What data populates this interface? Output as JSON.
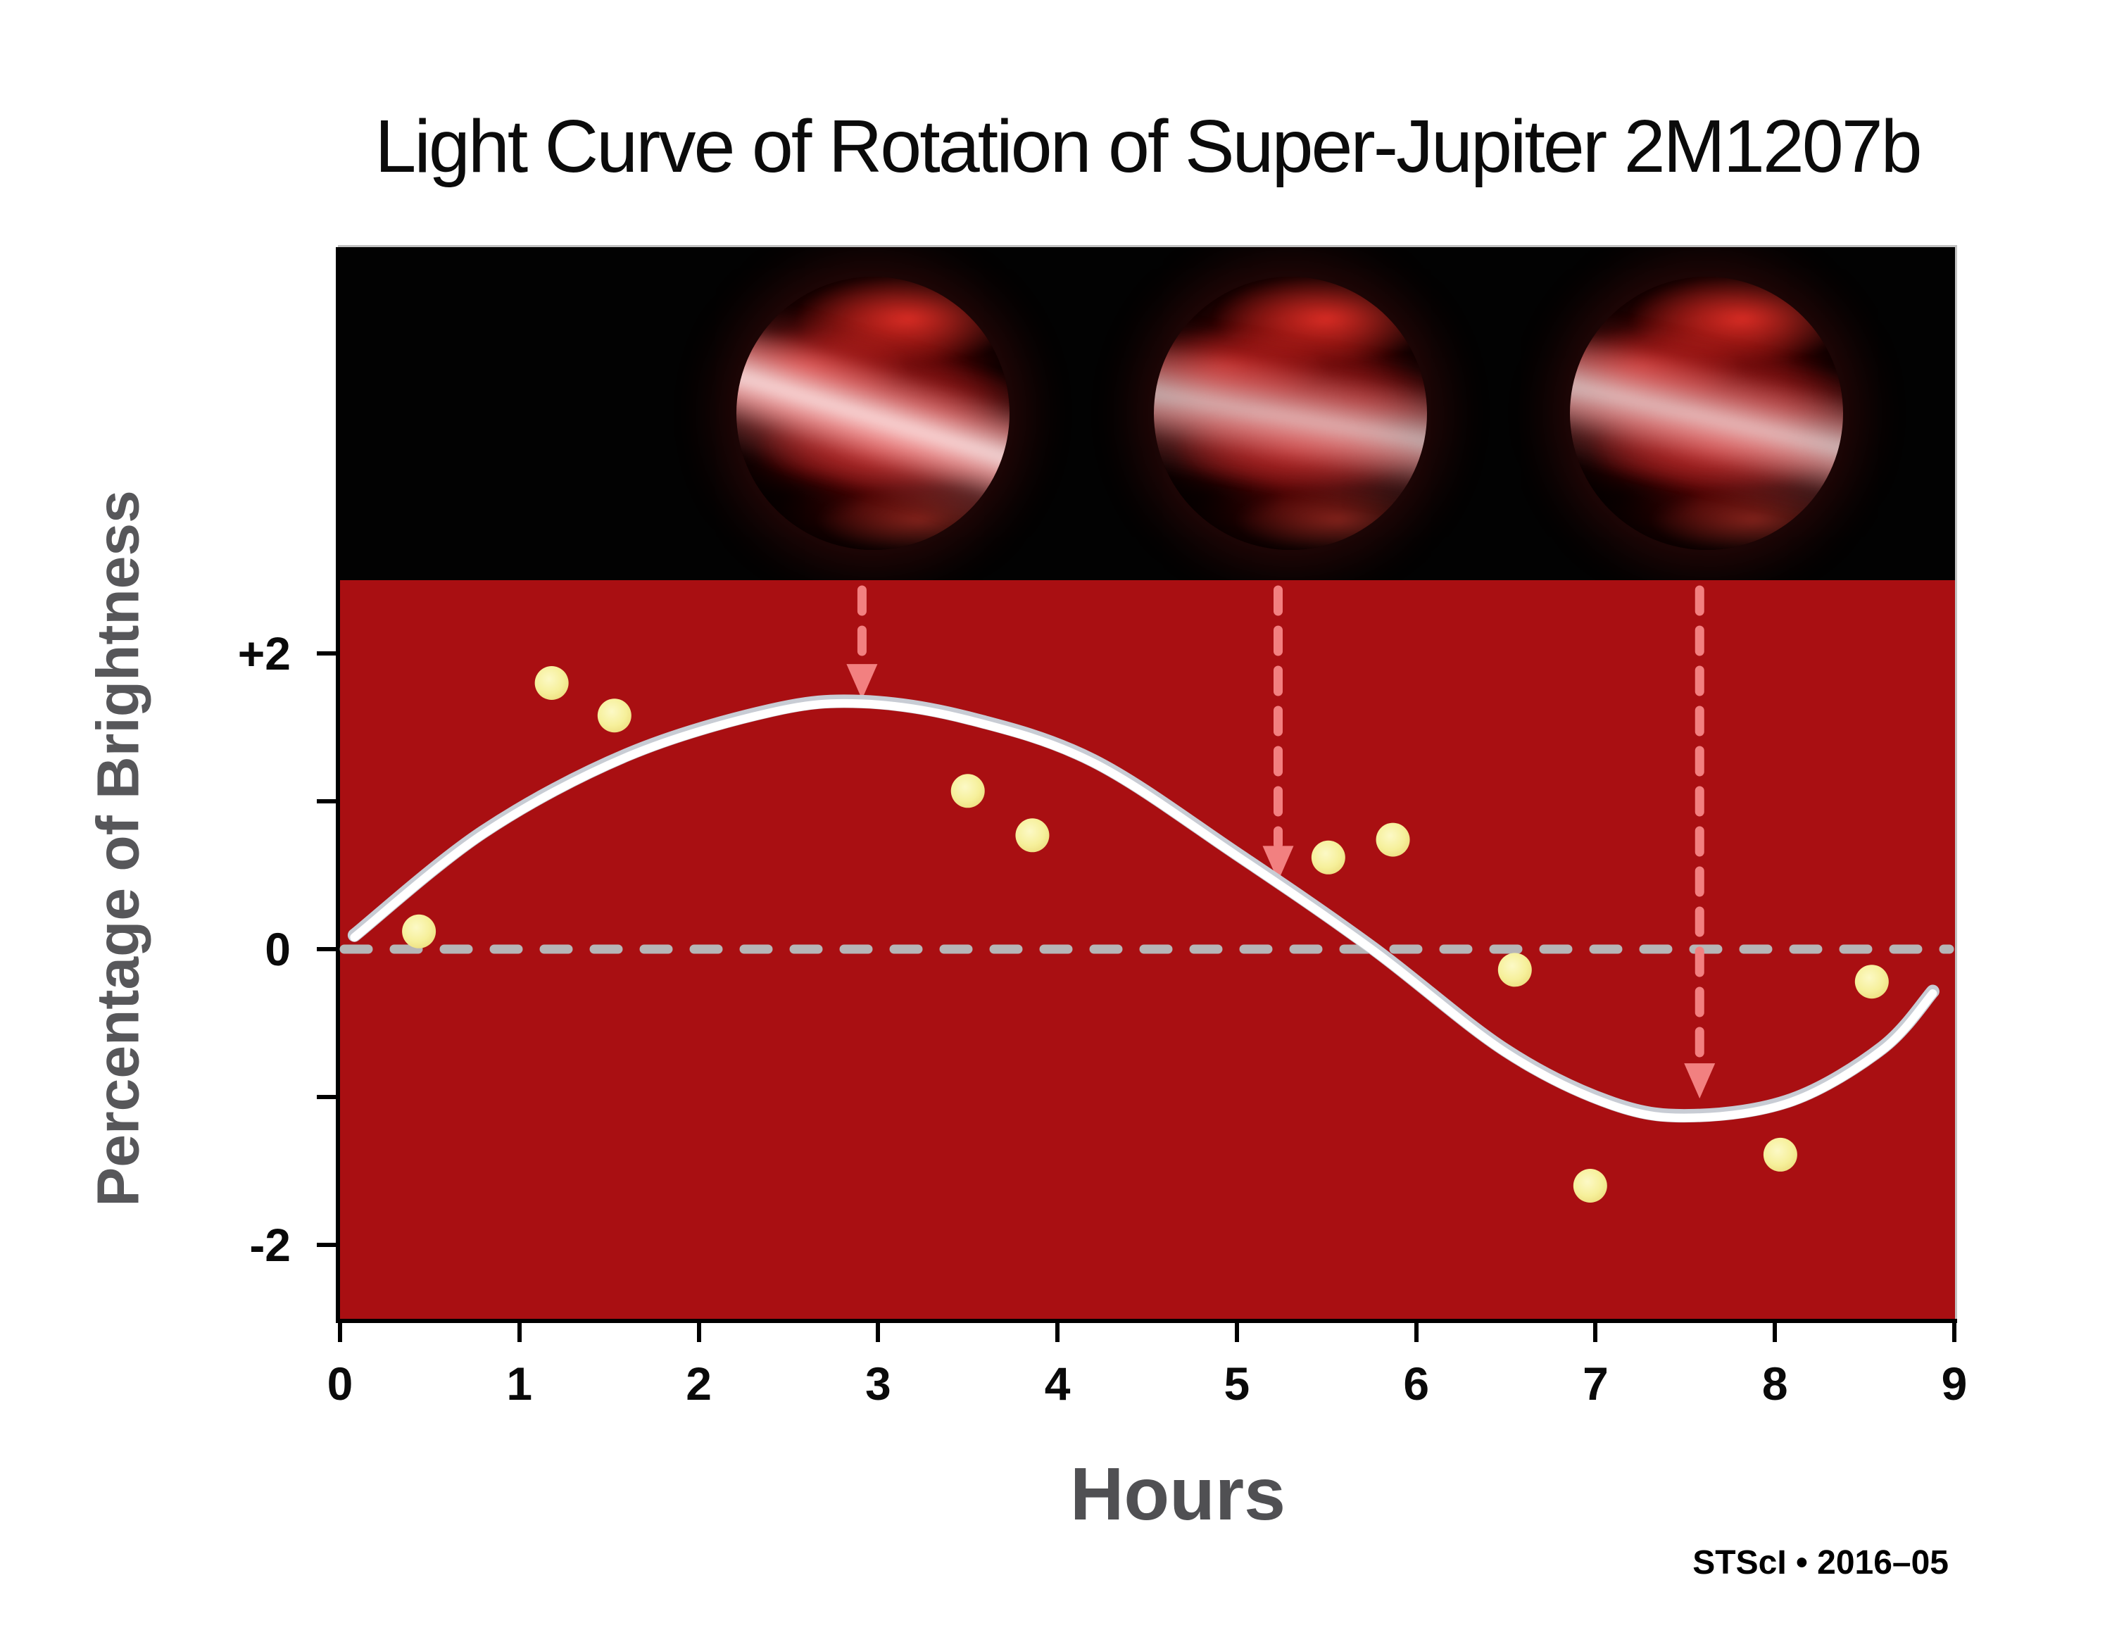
{
  "title": "Light Curve of Rotation of Super-Jupiter 2M1207b",
  "y_axis_title": "Percentage of Brightness",
  "x_axis_title": "Hours",
  "credit": "STScI • 2016–05",
  "colors": {
    "plot_background": "#a90f12",
    "planet_strip_background": "#020202",
    "curve_white": "#ffffff",
    "curve_gray_edge": "#c8ccd4",
    "data_point_yellow": "#f6f09b",
    "data_point_yellow_light": "#fcf9c6",
    "zero_line_gray": "#b6b6b7",
    "arrow_pink": "#f28080",
    "axis_black": "#000000",
    "label_gray": "#57575a"
  },
  "chart_data": {
    "type": "line+scatter",
    "title": "Light Curve of Rotation of Super-Jupiter 2M1207b",
    "xlabel": "Hours",
    "ylabel": "Percentage of Brightness",
    "x_range": [
      0,
      9
    ],
    "y_range": [
      -2.5,
      2.5
    ],
    "grid": false,
    "x_ticks": {
      "values": [
        0,
        1,
        2,
        3,
        4,
        5,
        6,
        7,
        8,
        9
      ],
      "labels": [
        "0",
        "1",
        "2",
        "3",
        "4",
        "5",
        "6",
        "7",
        "8",
        "9"
      ]
    },
    "y_ticks": {
      "labeled": [
        {
          "value": 2,
          "label": "+2"
        },
        {
          "value": 0,
          "label": "0"
        },
        {
          "value": -2,
          "label": "-2"
        }
      ],
      "minor_values": [
        1,
        -1
      ]
    },
    "zero_line_value": 0,
    "scatter_points_hours_percent": [
      [
        0.44,
        0.12
      ],
      [
        1.18,
        1.8
      ],
      [
        1.53,
        1.58
      ],
      [
        3.5,
        1.07
      ],
      [
        3.86,
        0.77
      ],
      [
        5.51,
        0.62
      ],
      [
        5.87,
        0.74
      ],
      [
        6.55,
        -0.14
      ],
      [
        6.97,
        -1.6
      ],
      [
        8.03,
        -1.39
      ],
      [
        8.54,
        -0.22
      ]
    ],
    "model_curve_hours_percent": [
      [
        0.08,
        0.08
      ],
      [
        0.8,
        0.78
      ],
      [
        1.6,
        1.3
      ],
      [
        2.4,
        1.6
      ],
      [
        2.91,
        1.66
      ],
      [
        3.5,
        1.55
      ],
      [
        4.2,
        1.26
      ],
      [
        5.0,
        0.63
      ],
      [
        5.75,
        0.0
      ],
      [
        6.5,
        -0.7
      ],
      [
        7.1,
        -1.06
      ],
      [
        7.55,
        -1.14
      ],
      [
        8.1,
        -1.03
      ],
      [
        8.6,
        -0.68
      ],
      [
        8.88,
        -0.3
      ]
    ],
    "rotation_arrows": [
      {
        "hour": 2.91,
        "tip_percent": 1.69
      },
      {
        "hour": 5.23,
        "tip_percent": 0.46
      },
      {
        "hour": 7.58,
        "tip_percent": -1.01
      }
    ],
    "planet_positions_hours": [
      2.97,
      5.3,
      7.62
    ]
  }
}
